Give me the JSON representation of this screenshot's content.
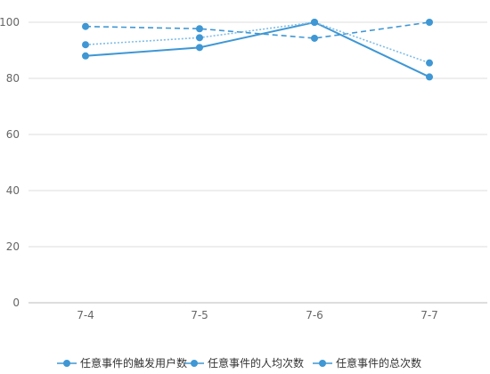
{
  "chart_data": {
    "type": "line",
    "categories": [
      "7-4",
      "7-5",
      "7-6",
      "7-7"
    ],
    "ylim": [
      0,
      100
    ],
    "yticks": [
      0,
      20,
      40,
      60,
      80,
      100
    ],
    "grid": true,
    "legend_position": "bottom",
    "series": [
      {
        "name": "任意事件的触发用户数",
        "values": [
          88,
          91,
          100,
          80.5
        ],
        "color": "#3f97d4",
        "dash": "solid"
      },
      {
        "name": "任意事件的人均次数",
        "values": [
          98.5,
          97.7,
          94.3,
          100
        ],
        "color": "#3f97d4",
        "dash": "dashed"
      },
      {
        "name": "任意事件的总次数",
        "values": [
          92,
          94.5,
          100,
          85.5
        ],
        "color": "#7fbde8",
        "dash": "dotted"
      }
    ]
  }
}
